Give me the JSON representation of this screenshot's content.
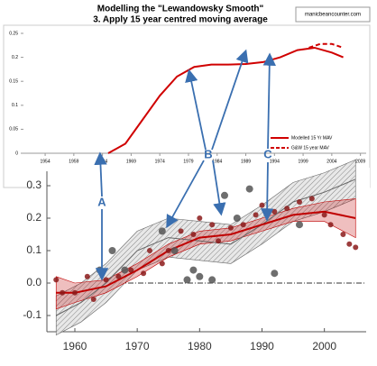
{
  "chart_data": [
    {
      "type": "line",
      "title": "Modelling the \"Lewandowsky Smooth\"",
      "subtitle": "3. Apply 15 year centred moving average",
      "source": "manicbeancounter.com",
      "xlim": [
        1951,
        2010
      ],
      "xticks": [
        1954,
        1959,
        1964,
        1969,
        1974,
        1979,
        1984,
        1989,
        1994,
        1999,
        2004,
        2009
      ],
      "ylim": [
        0,
        0.25
      ],
      "yticks": [
        0,
        0.05,
        0.1,
        0.15,
        0.2,
        0.25
      ],
      "legend_position": "lower right",
      "series": [
        {
          "name": "Modelled 15 Yr MAV",
          "color": "#d00000",
          "dashed": false,
          "x": [
            1965,
            1968,
            1971,
            1974,
            1977,
            1980,
            1983,
            1986,
            1989,
            1992,
            1995,
            1998,
            2001,
            2004,
            2006
          ],
          "values": [
            0,
            0.02,
            0.07,
            0.12,
            0.16,
            0.18,
            0.185,
            0.185,
            0.186,
            0.19,
            0.2,
            0.215,
            0.22,
            0.21,
            0.2
          ]
        },
        {
          "name": "G&W 15 year MAV",
          "color": "#d00000",
          "dashed": true,
          "x": [
            2000,
            2002,
            2004,
            2006
          ],
          "values": [
            0.22,
            0.228,
            0.228,
            0.22
          ]
        }
      ]
    },
    {
      "type": "scatter",
      "xlim": [
        1955,
        2008
      ],
      "xticks": [
        1960,
        1970,
        1980,
        1990,
        2000
      ],
      "ylim": [
        -0.15,
        0.35
      ],
      "yticks": [
        -0.1,
        {
          "value": 0,
          "label": "0.0"
        },
        0.1,
        0.2,
        0.3
      ],
      "annotations": [
        "A",
        "B",
        "C"
      ],
      "bands": [
        {
          "color": "#666666",
          "x": [
            1957,
            1961,
            1965,
            1970,
            1975,
            1980,
            1985,
            1990,
            1995,
            2000,
            2005
          ],
          "values": [
            -0.1,
            -0.06,
            0.0,
            0.1,
            0.14,
            0.13,
            0.12,
            0.18,
            0.25,
            0.28,
            0.32
          ],
          "lower": [
            -0.16,
            -0.12,
            -0.06,
            0.04,
            0.08,
            0.07,
            0.06,
            0.12,
            0.19,
            0.22,
            0.26
          ],
          "upper": [
            -0.04,
            0.0,
            0.06,
            0.16,
            0.2,
            0.19,
            0.18,
            0.24,
            0.31,
            0.34,
            0.38
          ]
        },
        {
          "color": "#c00000",
          "x": [
            1957,
            1960,
            1965,
            1970,
            1975,
            1980,
            1985,
            1990,
            1995,
            2000,
            2005
          ],
          "values": [
            -0.03,
            -0.03,
            -0.01,
            0.04,
            0.1,
            0.14,
            0.15,
            0.18,
            0.21,
            0.22,
            0.2
          ],
          "lower": [
            -0.08,
            -0.06,
            -0.03,
            0.02,
            0.08,
            0.12,
            0.13,
            0.16,
            0.19,
            0.19,
            0.14
          ],
          "upper": [
            0.02,
            0.0,
            0.01,
            0.06,
            0.12,
            0.16,
            0.17,
            0.2,
            0.23,
            0.25,
            0.26
          ]
        }
      ],
      "series": [
        {
          "color": "#8b1a1a",
          "x": [
            1957,
            1958,
            1960,
            1962,
            1963,
            1965,
            1967,
            1969,
            1971,
            1972,
            1974,
            1975,
            1977,
            1979,
            1980,
            1982,
            1983,
            1985,
            1987,
            1989,
            1990,
            1992,
            1994,
            1996,
            1998,
            2000,
            2001,
            2003,
            2004,
            2005
          ],
          "values": [
            0.01,
            -0.03,
            -0.03,
            0.02,
            -0.05,
            0.01,
            0.02,
            0.04,
            0.03,
            0.1,
            0.06,
            0.1,
            0.16,
            0.15,
            0.2,
            0.18,
            0.13,
            0.17,
            0.18,
            0.21,
            0.24,
            0.22,
            0.23,
            0.25,
            0.26,
            0.21,
            0.18,
            0.15,
            0.12,
            0.11
          ]
        },
        {
          "color": "#555555",
          "x": [
            1964,
            1966,
            1968,
            1974,
            1976,
            1978,
            1979,
            1980,
            1982,
            1984,
            1986,
            1988,
            1992,
            1996
          ],
          "values": [
            0.04,
            0.1,
            0.04,
            0.16,
            0.1,
            0.01,
            0.04,
            0.02,
            0.01,
            0.27,
            0.2,
            0.29,
            0.03,
            0.18
          ]
        }
      ]
    }
  ]
}
